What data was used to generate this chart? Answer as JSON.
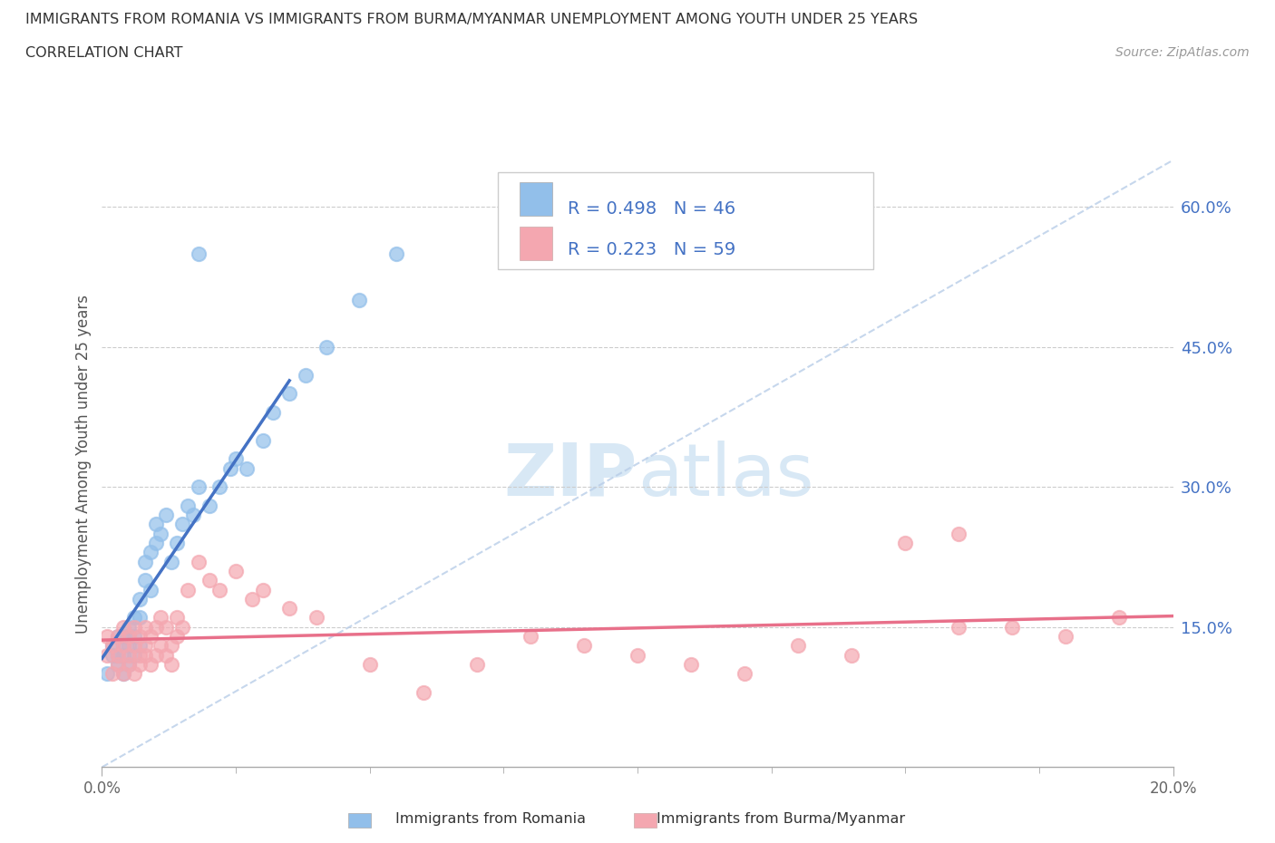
{
  "title_line1": "IMMIGRANTS FROM ROMANIA VS IMMIGRANTS FROM BURMA/MYANMAR UNEMPLOYMENT AMONG YOUTH UNDER 25 YEARS",
  "title_line2": "CORRELATION CHART",
  "source_text": "Source: ZipAtlas.com",
  "ylabel": "Unemployment Among Youth under 25 years",
  "xlim": [
    0.0,
    0.2
  ],
  "ylim": [
    0.0,
    0.65
  ],
  "ytick_values": [
    0.15,
    0.3,
    0.45,
    0.6
  ],
  "r_romania": 0.498,
  "n_romania": 46,
  "r_burma": 0.223,
  "n_burma": 59,
  "color_romania": "#92BFEA",
  "color_burma": "#F4A7B0",
  "color_trendline_romania": "#4472C4",
  "color_trendline_burma": "#E8708A",
  "color_diagonal": "#B8CDE8",
  "watermark_color": "#D8E8F5",
  "romania_x": [
    0.001,
    0.002,
    0.002,
    0.003,
    0.003,
    0.003,
    0.004,
    0.004,
    0.004,
    0.004,
    0.005,
    0.005,
    0.005,
    0.005,
    0.006,
    0.006,
    0.006,
    0.007,
    0.007,
    0.007,
    0.008,
    0.008,
    0.009,
    0.009,
    0.01,
    0.01,
    0.011,
    0.012,
    0.013,
    0.014,
    0.015,
    0.016,
    0.017,
    0.018,
    0.02,
    0.022,
    0.024,
    0.025,
    0.027,
    0.03,
    0.032,
    0.035,
    0.038,
    0.042,
    0.048,
    0.055
  ],
  "romania_y": [
    0.1,
    0.12,
    0.13,
    0.11,
    0.14,
    0.12,
    0.1,
    0.13,
    0.14,
    0.12,
    0.11,
    0.14,
    0.13,
    0.15,
    0.12,
    0.14,
    0.16,
    0.13,
    0.16,
    0.18,
    0.2,
    0.22,
    0.19,
    0.23,
    0.24,
    0.26,
    0.25,
    0.27,
    0.22,
    0.24,
    0.26,
    0.28,
    0.27,
    0.3,
    0.28,
    0.3,
    0.32,
    0.33,
    0.32,
    0.35,
    0.38,
    0.4,
    0.42,
    0.45,
    0.5,
    0.55
  ],
  "romania_outlier_x": [
    0.018
  ],
  "romania_outlier_y": [
    0.55
  ],
  "burma_x": [
    0.001,
    0.001,
    0.002,
    0.002,
    0.003,
    0.003,
    0.003,
    0.004,
    0.004,
    0.004,
    0.005,
    0.005,
    0.005,
    0.006,
    0.006,
    0.006,
    0.007,
    0.007,
    0.007,
    0.008,
    0.008,
    0.008,
    0.009,
    0.009,
    0.01,
    0.01,
    0.011,
    0.011,
    0.012,
    0.012,
    0.013,
    0.013,
    0.014,
    0.014,
    0.015,
    0.016,
    0.018,
    0.02,
    0.022,
    0.025,
    0.028,
    0.03,
    0.035,
    0.04,
    0.05,
    0.06,
    0.07,
    0.08,
    0.09,
    0.1,
    0.11,
    0.12,
    0.13,
    0.14,
    0.15,
    0.16,
    0.17,
    0.18,
    0.19
  ],
  "burma_y": [
    0.12,
    0.14,
    0.1,
    0.13,
    0.11,
    0.14,
    0.12,
    0.1,
    0.13,
    0.15,
    0.11,
    0.14,
    0.12,
    0.13,
    0.1,
    0.15,
    0.12,
    0.14,
    0.11,
    0.13,
    0.12,
    0.15,
    0.11,
    0.14,
    0.12,
    0.15,
    0.13,
    0.16,
    0.12,
    0.15,
    0.13,
    0.11,
    0.14,
    0.16,
    0.15,
    0.19,
    0.22,
    0.2,
    0.19,
    0.21,
    0.18,
    0.19,
    0.17,
    0.16,
    0.11,
    0.08,
    0.11,
    0.14,
    0.13,
    0.12,
    0.11,
    0.1,
    0.13,
    0.12,
    0.24,
    0.15,
    0.15,
    0.14,
    0.16
  ],
  "burma_outlier_x": [
    0.16
  ],
  "burma_outlier_y": [
    0.25
  ]
}
